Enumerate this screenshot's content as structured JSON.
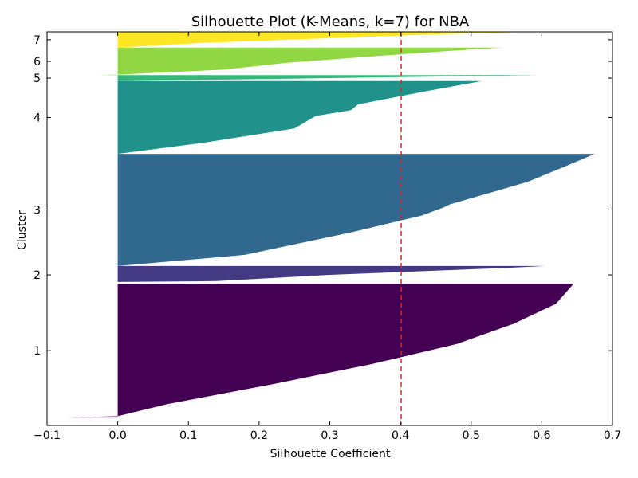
{
  "chart_data": {
    "type": "area",
    "title": "Silhouette Plot (K-Means, k=7) for NBA",
    "xlabel": "Silhouette Coefficient",
    "ylabel": "Cluster",
    "xlim": [
      -0.1,
      0.7
    ],
    "x_ticks": [
      -0.1,
      0.0,
      0.1,
      0.2,
      0.3,
      0.4,
      0.5,
      0.6,
      0.7
    ],
    "x_tick_labels": [
      "−0.1",
      "0.0",
      "0.1",
      "0.2",
      "0.3",
      "0.4",
      "0.5",
      "0.6",
      "0.7"
    ],
    "grid": false,
    "average_silhouette": 0.401,
    "average_line_color": "#d62728",
    "clusters": [
      {
        "label": "1",
        "color": "#440154",
        "band": [
          0.02,
          0.36
        ],
        "profile": [
          [
            0,
            -0.07
          ],
          [
            0.01,
            0.0
          ],
          [
            0.1,
            0.07
          ],
          [
            0.25,
            0.22
          ],
          [
            0.4,
            0.36
          ],
          [
            0.55,
            0.48
          ],
          [
            0.7,
            0.56
          ],
          [
            0.85,
            0.62
          ],
          [
            1,
            0.645
          ]
        ]
      },
      {
        "label": "2",
        "color": "#443983",
        "band": [
          0.36,
          0.405
        ],
        "profile": [
          [
            0,
            0.0
          ],
          [
            0.1,
            0.0
          ],
          [
            0.15,
            0.14
          ],
          [
            0.5,
            0.3
          ],
          [
            0.9,
            0.55
          ],
          [
            1,
            0.605
          ]
        ]
      },
      {
        "label": "3",
        "color": "#31688e",
        "band": [
          0.405,
          0.69
        ],
        "profile": [
          [
            0,
            0.0
          ],
          [
            0.1,
            0.18
          ],
          [
            0.3,
            0.33
          ],
          [
            0.45,
            0.43
          ],
          [
            0.52,
            0.46
          ],
          [
            0.55,
            0.47
          ],
          [
            0.75,
            0.58
          ],
          [
            0.88,
            0.63
          ],
          [
            1,
            0.675
          ]
        ]
      },
      {
        "label": "4",
        "color": "#21918c",
        "band": [
          0.69,
          0.875
        ],
        "profile": [
          [
            0,
            0.0
          ],
          [
            0.15,
            0.12
          ],
          [
            0.35,
            0.25
          ],
          [
            0.52,
            0.28
          ],
          [
            0.6,
            0.33
          ],
          [
            0.68,
            0.34
          ],
          [
            0.85,
            0.43
          ],
          [
            1,
            0.515
          ]
        ]
      },
      {
        "label": "5",
        "color": "#35b779",
        "band": [
          0.875,
          0.89
        ],
        "profile": [
          [
            0,
            0.0
          ],
          [
            0.5,
            0.3
          ],
          [
            1,
            0.595
          ]
        ]
      },
      {
        "label": "6",
        "color": "#90d743",
        "band": [
          0.89,
          0.96
        ],
        "profile": [
          [
            0,
            -0.03
          ],
          [
            0.02,
            0.0
          ],
          [
            0.2,
            0.15
          ],
          [
            0.45,
            0.24
          ],
          [
            0.7,
            0.37
          ],
          [
            0.9,
            0.48
          ],
          [
            1,
            0.545
          ]
        ]
      },
      {
        "label": "7",
        "color": "#fde725",
        "band": [
          0.96,
          1.0
        ],
        "profile": [
          [
            0,
            0.0
          ],
          [
            0.3,
            0.12
          ],
          [
            0.6,
            0.3
          ],
          [
            0.85,
            0.45
          ],
          [
            1,
            0.585
          ]
        ]
      }
    ]
  }
}
